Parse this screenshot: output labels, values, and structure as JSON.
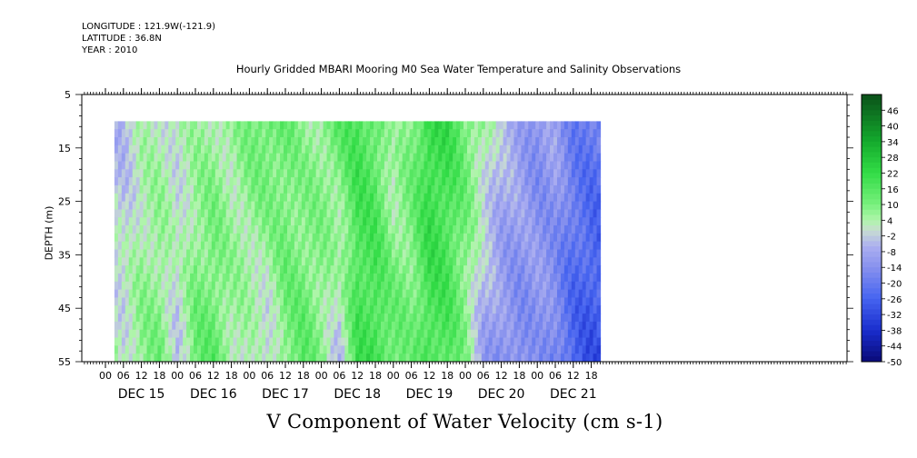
{
  "header": {
    "longitude": "LONGITUDE : 121.9W(-121.9)",
    "latitude": "LATITUDE : 36.8N",
    "year": "YEAR : 2010"
  },
  "chart_data": {
    "type": "heatmap",
    "title": "Hourly Gridded MBARI Mooring M0 Sea Water Temperature and Salinity Observations",
    "xlabel": "V Component of Water Velocity (cm s-1)",
    "ylabel": "DEPTH (m)",
    "y_ticks": [
      5,
      15,
      25,
      35,
      45,
      55
    ],
    "ylim": [
      55,
      5
    ],
    "x_hour_ticks": [
      "00",
      "06",
      "12",
      "18",
      "00",
      "06",
      "12",
      "18",
      "00",
      "06",
      "12",
      "18",
      "00",
      "06",
      "12",
      "18",
      "00",
      "06",
      "12",
      "18",
      "00",
      "06",
      "12",
      "18",
      "00",
      "06",
      "12",
      "18"
    ],
    "x_day_labels": [
      "DEC 15",
      "DEC 16",
      "DEC 17",
      "DEC 18",
      "DEC 19",
      "DEC 20",
      "DEC 21"
    ],
    "data_depth_range": [
      10,
      55
    ],
    "colorbar": {
      "labels": [
        "46",
        "40",
        "34",
        "28",
        "22",
        "16",
        "10",
        "4",
        "-2",
        "-8",
        "-14",
        "-20",
        "-26",
        "-32",
        "-38",
        "-44",
        "-50"
      ],
      "range": [
        -50,
        52
      ]
    },
    "profile": {
      "hours": [
        0,
        6,
        12,
        18,
        24,
        30,
        36,
        42,
        48,
        54,
        60,
        66,
        72,
        78,
        84,
        90,
        96,
        102,
        108,
        114,
        120,
        126,
        132,
        138,
        144,
        150,
        156,
        162,
        164
      ],
      "v_surface": [
        -6,
        -5,
        2,
        3,
        2,
        4,
        6,
        5,
        10,
        14,
        12,
        6,
        8,
        14,
        18,
        14,
        2,
        10,
        22,
        20,
        12,
        6,
        -4,
        -8,
        -14,
        -10,
        -18,
        -20,
        -20
      ],
      "v_bottom": [
        6,
        2,
        8,
        10,
        -2,
        12,
        14,
        6,
        2,
        -2,
        10,
        14,
        8,
        -4,
        18,
        20,
        14,
        10,
        18,
        16,
        8,
        -10,
        -14,
        -16,
        -12,
        -18,
        -26,
        -30,
        -30
      ]
    }
  }
}
